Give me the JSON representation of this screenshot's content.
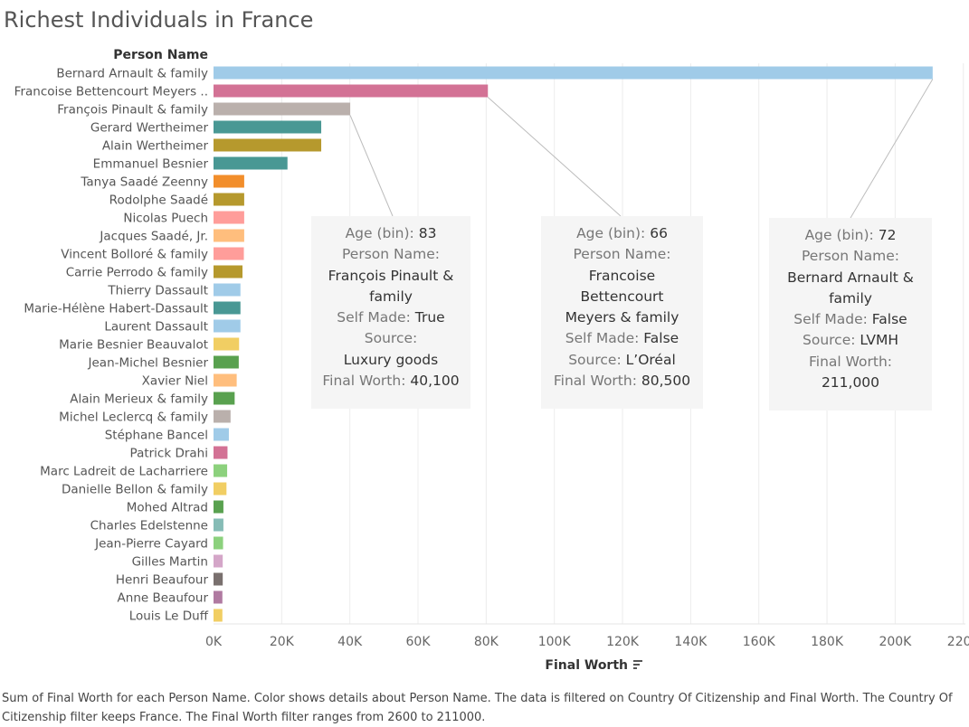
{
  "title": "Richest Individuals in France",
  "caption": "Sum of Final Worth for each Person Name.  Color shows details about Person Name. The data is filtered on Country Of Citizenship and Final Worth. The Country Of Citizenship filter keeps France. The Final Worth filter ranges from 2600 to 211000.",
  "chart_data": {
    "type": "bar",
    "orientation": "horizontal",
    "title": "Richest Individuals in France",
    "row_header": "Person Name",
    "xlabel": "Final Worth",
    "xlim": [
      0,
      220000
    ],
    "x_ticks": [
      0,
      20000,
      40000,
      60000,
      80000,
      100000,
      120000,
      140000,
      160000,
      180000,
      200000,
      220000
    ],
    "x_tick_labels": [
      "0K",
      "20K",
      "40K",
      "60K",
      "80K",
      "100K",
      "120K",
      "140K",
      "160K",
      "180K",
      "200K",
      "220K"
    ],
    "grid": "vertical",
    "categories": [
      "Bernard Arnault & family",
      "Francoise Bettencourt Meyers ..",
      "François Pinault & family",
      "Gerard Wertheimer",
      "Alain Wertheimer",
      "Emmanuel Besnier",
      "Tanya Saadé Zeenny",
      "Rodolphe Saadé",
      "Nicolas Puech",
      "Jacques Saadé, Jr.",
      "Vincent Bolloré & family",
      "Carrie Perrodo & family",
      "Thierry Dassault",
      "Marie-Hélène Habert-Dassault",
      "Laurent Dassault",
      "Marie Besnier Beauvalot",
      "Jean-Michel Besnier",
      "Xavier Niel",
      "Alain Merieux & family",
      "Michel Leclercq & family",
      "Stéphane Bancel",
      "Patrick Drahi",
      "Marc Ladreit de Lacharriere",
      "Danielle Bellon & family",
      "Mohed Altrad",
      "Charles Edelstenne",
      "Jean-Pierre Cayard",
      "Gilles Martin",
      "Henri Beaufour",
      "Anne Beaufour",
      "Louis Le Duff"
    ],
    "values": [
      211000,
      80500,
      40100,
      31600,
      31600,
      21700,
      9000,
      9000,
      9000,
      9000,
      8900,
      8500,
      7900,
      7900,
      7900,
      7500,
      7400,
      6800,
      6200,
      5000,
      4500,
      4100,
      4000,
      3800,
      2900,
      2900,
      2800,
      2700,
      2700,
      2600,
      2600
    ],
    "colors": [
      "#a0cbe8",
      "#d37295",
      "#bab0ac",
      "#499894",
      "#b6992d",
      "#499894",
      "#f28e2b",
      "#b6992d",
      "#ff9d9a",
      "#ffbe7d",
      "#ff9d9a",
      "#b6992d",
      "#a0cbe8",
      "#499894",
      "#a0cbe8",
      "#f1ce63",
      "#59a14f",
      "#ffbe7d",
      "#59a14f",
      "#bab0ac",
      "#a0cbe8",
      "#d37295",
      "#8cd17d",
      "#f1ce63",
      "#59a14f",
      "#86bcb6",
      "#8cd17d",
      "#d4a6c8",
      "#79706e",
      "#b07aa1",
      "#f1ce63"
    ]
  },
  "tooltips": [
    {
      "age_label": "Age (bin):",
      "age": "83",
      "person_label": "Person Name:",
      "person": "François Pinault & family",
      "self_made_label": "Self Made:",
      "self_made": "True",
      "source_label": "Source:",
      "source": "Luxury goods",
      "worth_label": "Final Worth:",
      "worth": "40,100"
    },
    {
      "age_label": "Age (bin):",
      "age": "66",
      "person_label": "Person Name:",
      "person": "Francoise Bettencourt Meyers & family",
      "self_made_label": "Self Made:",
      "self_made": "False",
      "source_label": "Source:",
      "source": "L’Oréal",
      "worth_label": "Final Worth:",
      "worth": "80,500"
    },
    {
      "age_label": "Age (bin):",
      "age": "72",
      "person_label": "Person Name:",
      "person": "Bernard Arnault & family",
      "self_made_label": "Self Made:",
      "self_made": "False",
      "source_label": "Source:",
      "source": "LVMH",
      "worth_label": "Final Worth:",
      "worth": "211,000"
    }
  ]
}
